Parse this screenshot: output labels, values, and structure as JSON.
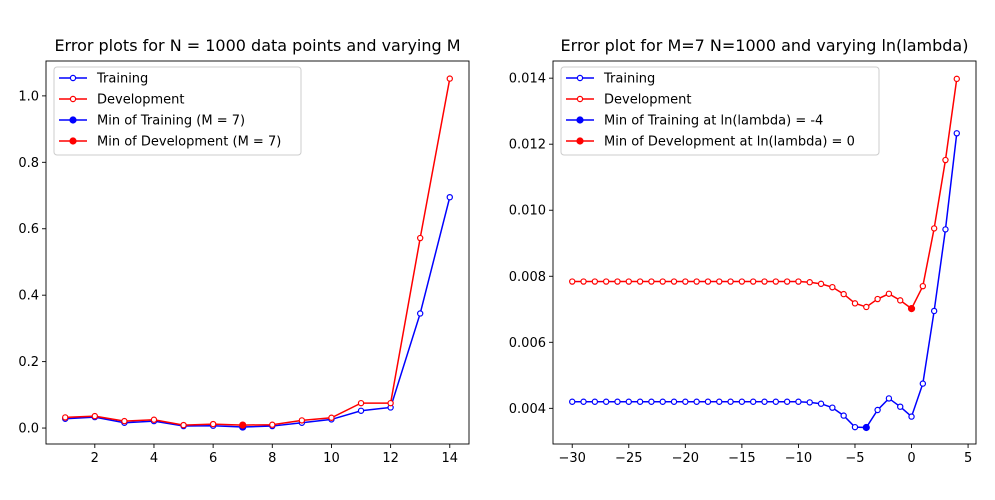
{
  "chart_data": [
    {
      "type": "line",
      "title": "Error plots for N = 1000 data points and varying M",
      "xlabel": "",
      "ylabel": "",
      "xlim": [
        0.35,
        14.65
      ],
      "ylim": [
        -0.048,
        1.105
      ],
      "xticks": [
        2,
        4,
        6,
        8,
        10,
        12,
        14
      ],
      "yticks": [
        0.0,
        0.2,
        0.4,
        0.6,
        0.8,
        1.0
      ],
      "ytick_labels": [
        "0.0",
        "0.2",
        "0.4",
        "0.6",
        "0.8",
        "1.0"
      ],
      "grid": false,
      "legend_position": "upper-left",
      "series": [
        {
          "name": "Training",
          "color": "#0000ff",
          "marker": "open-circle",
          "x": [
            1,
            2,
            3,
            4,
            5,
            6,
            7,
            8,
            9,
            10,
            11,
            12,
            13,
            14
          ],
          "y": [
            0.028,
            0.033,
            0.016,
            0.021,
            0.006,
            0.007,
            0.003,
            0.006,
            0.016,
            0.026,
            0.052,
            0.062,
            0.345,
            0.695
          ]
        },
        {
          "name": "Development",
          "color": "#ff0000",
          "marker": "open-circle",
          "x": [
            1,
            2,
            3,
            4,
            5,
            6,
            7,
            8,
            9,
            10,
            11,
            12,
            13,
            14
          ],
          "y": [
            0.032,
            0.036,
            0.021,
            0.025,
            0.009,
            0.012,
            0.009,
            0.01,
            0.023,
            0.031,
            0.075,
            0.075,
            0.572,
            1.052
          ]
        },
        {
          "name": "Min of Training (M = 7)",
          "color": "#0000ff",
          "marker": "filled-circle",
          "x": [
            7
          ],
          "y": [
            0.003
          ]
        },
        {
          "name": "Min of Development (M = 7)",
          "color": "#ff0000",
          "marker": "filled-circle",
          "x": [
            7
          ],
          "y": [
            0.009
          ]
        }
      ]
    },
    {
      "type": "line",
      "title": "Error plot for M=7 N=1000 and varying ln(lambda)",
      "xlabel": "",
      "ylabel": "",
      "xlim": [
        -31.7,
        5.7
      ],
      "ylim": [
        0.00292,
        0.01452
      ],
      "xticks": [
        -30,
        -25,
        -20,
        -15,
        -10,
        -5,
        0,
        5
      ],
      "yticks": [
        0.004,
        0.006,
        0.008,
        0.01,
        0.012,
        0.014
      ],
      "ytick_labels": [
        "0.004",
        "0.006",
        "0.008",
        "0.010",
        "0.012",
        "0.014"
      ],
      "grid": false,
      "legend_position": "upper-left",
      "series": [
        {
          "name": "Training",
          "color": "#0000ff",
          "marker": "open-circle",
          "x": [
            -30,
            -29,
            -28,
            -27,
            -26,
            -25,
            -24,
            -23,
            -22,
            -21,
            -20,
            -19,
            -18,
            -17,
            -16,
            -15,
            -14,
            -13,
            -12,
            -11,
            -10,
            -9,
            -8,
            -7,
            -6,
            -5,
            -4,
            -3,
            -2,
            -1,
            0,
            1,
            2,
            3,
            4
          ],
          "y": [
            0.0042,
            0.0042,
            0.0042,
            0.0042,
            0.0042,
            0.0042,
            0.0042,
            0.0042,
            0.0042,
            0.0042,
            0.0042,
            0.0042,
            0.0042,
            0.0042,
            0.0042,
            0.0042,
            0.0042,
            0.0042,
            0.0042,
            0.0042,
            0.0042,
            0.00418,
            0.00414,
            0.00402,
            0.00378,
            0.00343,
            0.00342,
            0.00395,
            0.0043,
            0.00405,
            0.00375,
            0.00475,
            0.00695,
            0.00942,
            0.01233
          ]
        },
        {
          "name": "Development",
          "color": "#ff0000",
          "marker": "open-circle",
          "x": [
            -30,
            -29,
            -28,
            -27,
            -26,
            -25,
            -24,
            -23,
            -22,
            -21,
            -20,
            -19,
            -18,
            -17,
            -16,
            -15,
            -14,
            -13,
            -12,
            -11,
            -10,
            -9,
            -8,
            -7,
            -6,
            -5,
            -4,
            -3,
            -2,
            -1,
            0,
            1,
            2,
            3,
            4
          ],
          "y": [
            0.00784,
            0.00784,
            0.00784,
            0.00784,
            0.00784,
            0.00784,
            0.00784,
            0.00784,
            0.00784,
            0.00784,
            0.00784,
            0.00784,
            0.00784,
            0.00784,
            0.00784,
            0.00784,
            0.00784,
            0.00784,
            0.00784,
            0.00784,
            0.00784,
            0.00782,
            0.00777,
            0.00767,
            0.00746,
            0.00718,
            0.00707,
            0.00731,
            0.00747,
            0.00727,
            0.00702,
            0.0077,
            0.00945,
            0.01152,
            0.01398
          ]
        },
        {
          "name": "Min of Training at ln(lambda) = -4",
          "color": "#0000ff",
          "marker": "filled-circle",
          "x": [
            -4
          ],
          "y": [
            0.00342
          ]
        },
        {
          "name": "Min of Development at ln(lambda) = 0",
          "color": "#ff0000",
          "marker": "filled-circle",
          "x": [
            0
          ],
          "y": [
            0.00702
          ]
        }
      ]
    }
  ]
}
